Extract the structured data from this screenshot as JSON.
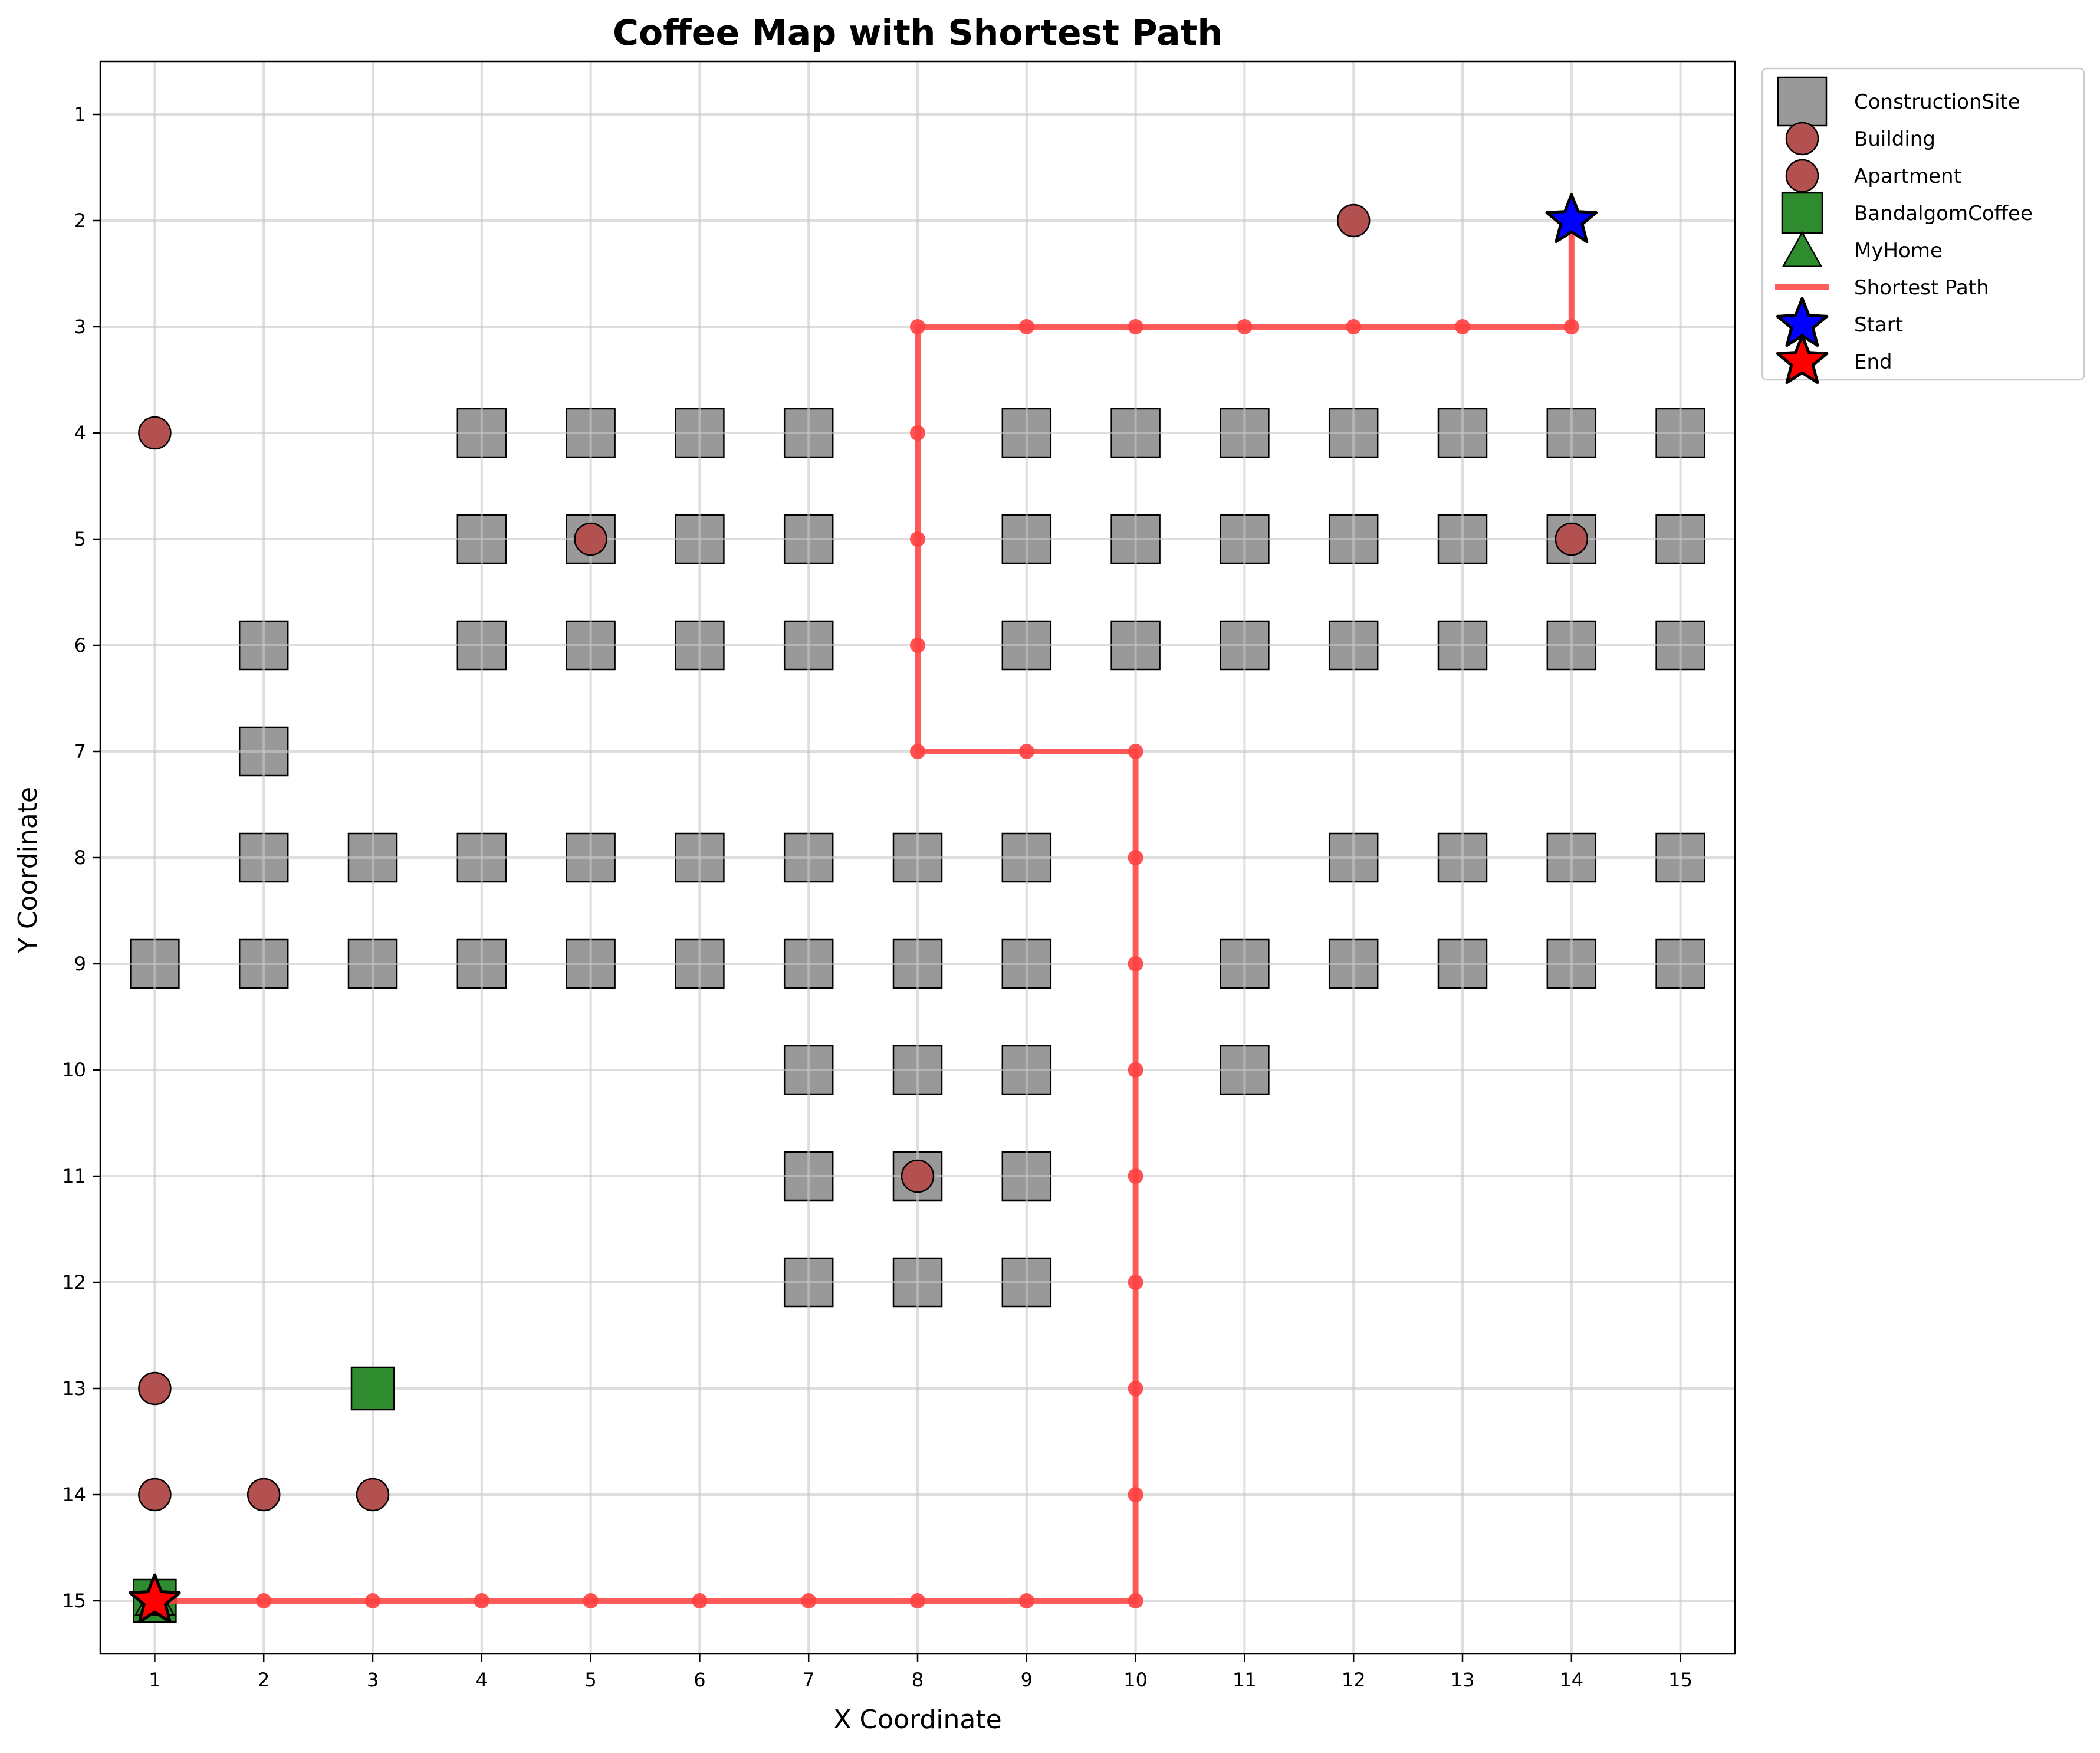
{
  "chart_data": {
    "type": "scatter",
    "title": "Coffee Map with Shortest Path",
    "xlabel": "X Coordinate",
    "ylabel": "Y Coordinate",
    "xlim": [
      0.5,
      15.5
    ],
    "ylim": [
      15.5,
      0.5
    ],
    "y_inverted": true,
    "x_ticks": [
      1,
      2,
      3,
      4,
      5,
      6,
      7,
      8,
      9,
      10,
      11,
      12,
      13,
      14,
      15
    ],
    "y_ticks": [
      1,
      2,
      3,
      4,
      5,
      6,
      7,
      8,
      9,
      10,
      11,
      12,
      13,
      14,
      15
    ],
    "grid": true,
    "legend_position": "outside-top-right",
    "colors": {
      "construction": "#999999",
      "building": "#b35050",
      "apartment": "#b35050",
      "coffee": "#2e8b2e",
      "home": "#2e8b2e",
      "path": "#ff4040",
      "start": "#0000ff",
      "end": "#ff0000"
    },
    "series": [
      {
        "name": "ConstructionSite",
        "marker": "square",
        "points": [
          [
            4,
            4
          ],
          [
            5,
            4
          ],
          [
            6,
            4
          ],
          [
            7,
            4
          ],
          [
            9,
            4
          ],
          [
            10,
            4
          ],
          [
            11,
            4
          ],
          [
            12,
            4
          ],
          [
            13,
            4
          ],
          [
            14,
            4
          ],
          [
            15,
            4
          ],
          [
            4,
            5
          ],
          [
            5,
            5
          ],
          [
            6,
            5
          ],
          [
            7,
            5
          ],
          [
            9,
            5
          ],
          [
            10,
            5
          ],
          [
            11,
            5
          ],
          [
            12,
            5
          ],
          [
            13,
            5
          ],
          [
            14,
            5
          ],
          [
            15,
            5
          ],
          [
            2,
            6
          ],
          [
            4,
            6
          ],
          [
            5,
            6
          ],
          [
            6,
            6
          ],
          [
            7,
            6
          ],
          [
            9,
            6
          ],
          [
            10,
            6
          ],
          [
            11,
            6
          ],
          [
            12,
            6
          ],
          [
            13,
            6
          ],
          [
            14,
            6
          ],
          [
            15,
            6
          ],
          [
            2,
            7
          ],
          [
            2,
            8
          ],
          [
            3,
            8
          ],
          [
            4,
            8
          ],
          [
            5,
            8
          ],
          [
            6,
            8
          ],
          [
            7,
            8
          ],
          [
            8,
            8
          ],
          [
            9,
            8
          ],
          [
            12,
            8
          ],
          [
            13,
            8
          ],
          [
            14,
            8
          ],
          [
            15,
            8
          ],
          [
            1,
            9
          ],
          [
            2,
            9
          ],
          [
            3,
            9
          ],
          [
            4,
            9
          ],
          [
            5,
            9
          ],
          [
            6,
            9
          ],
          [
            7,
            9
          ],
          [
            8,
            9
          ],
          [
            9,
            9
          ],
          [
            11,
            9
          ],
          [
            12,
            9
          ],
          [
            13,
            9
          ],
          [
            14,
            9
          ],
          [
            15,
            9
          ],
          [
            7,
            10
          ],
          [
            8,
            10
          ],
          [
            9,
            10
          ],
          [
            11,
            10
          ],
          [
            7,
            11
          ],
          [
            8,
            11
          ],
          [
            9,
            11
          ],
          [
            7,
            12
          ],
          [
            8,
            12
          ],
          [
            9,
            12
          ]
        ]
      },
      {
        "name": "Building",
        "marker": "circle",
        "points": [
          [
            12,
            2
          ],
          [
            1,
            4
          ],
          [
            5,
            5
          ],
          [
            14,
            5
          ],
          [
            8,
            11
          ],
          [
            1,
            13
          ],
          [
            1,
            14
          ]
        ]
      },
      {
        "name": "Apartment",
        "marker": "circle",
        "points": [
          [
            2,
            14
          ],
          [
            3,
            14
          ]
        ]
      },
      {
        "name": "BandalgomCoffee",
        "marker": "square",
        "points": [
          [
            3,
            13
          ],
          [
            1,
            15
          ]
        ]
      },
      {
        "name": "MyHome",
        "marker": "triangle",
        "points": [
          [
            1,
            15
          ]
        ]
      },
      {
        "name": "Shortest Path",
        "marker": "line",
        "points": [
          [
            14,
            2
          ],
          [
            14,
            3
          ],
          [
            13,
            3
          ],
          [
            12,
            3
          ],
          [
            11,
            3
          ],
          [
            10,
            3
          ],
          [
            9,
            3
          ],
          [
            8,
            3
          ],
          [
            8,
            4
          ],
          [
            8,
            5
          ],
          [
            8,
            6
          ],
          [
            8,
            7
          ],
          [
            9,
            7
          ],
          [
            10,
            7
          ],
          [
            10,
            8
          ],
          [
            10,
            9
          ],
          [
            10,
            10
          ],
          [
            10,
            11
          ],
          [
            10,
            12
          ],
          [
            10,
            13
          ],
          [
            10,
            14
          ],
          [
            10,
            15
          ],
          [
            9,
            15
          ],
          [
            8,
            15
          ],
          [
            7,
            15
          ],
          [
            6,
            15
          ],
          [
            5,
            15
          ],
          [
            4,
            15
          ],
          [
            3,
            15
          ],
          [
            2,
            15
          ],
          [
            1,
            15
          ]
        ]
      },
      {
        "name": "Start",
        "marker": "star",
        "points": [
          [
            14,
            2
          ]
        ]
      },
      {
        "name": "End",
        "marker": "star",
        "points": [
          [
            1,
            15
          ]
        ]
      }
    ]
  }
}
